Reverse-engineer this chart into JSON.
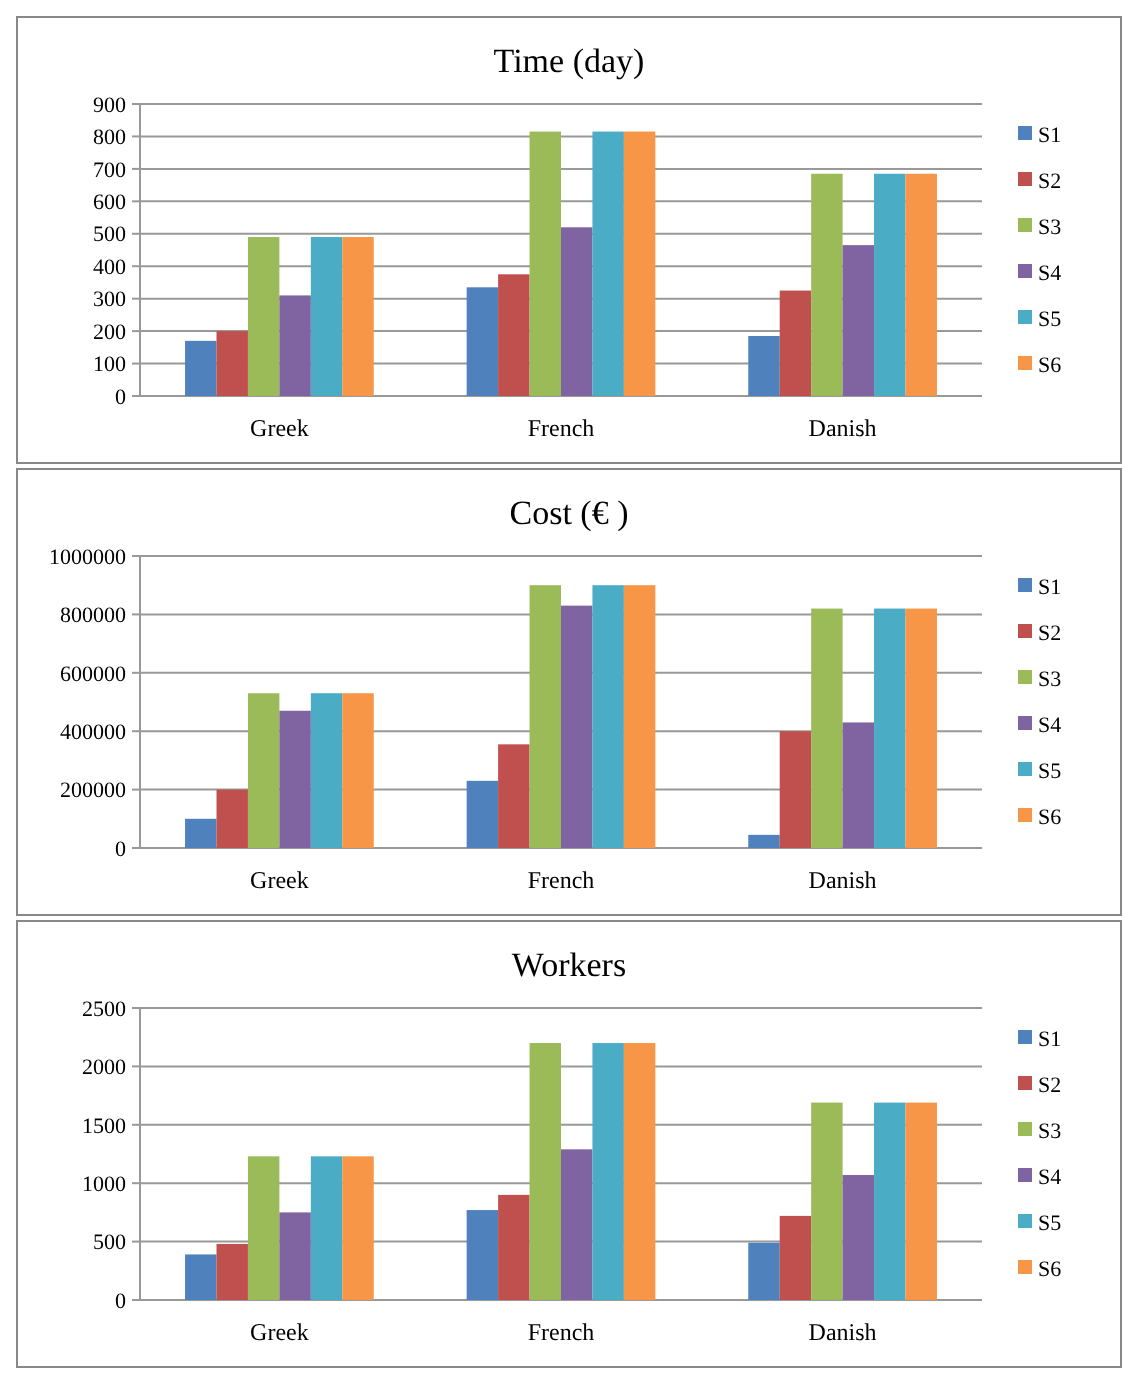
{
  "chart_data": [
    {
      "type": "bar",
      "title": "Time (day)",
      "categories": [
        "Greek",
        "French",
        "Danish"
      ],
      "ylim": [
        0,
        900
      ],
      "yticks": [
        0,
        100,
        200,
        300,
        400,
        500,
        600,
        700,
        800,
        900
      ],
      "grid": "y",
      "legend": "right",
      "series": [
        {
          "name": "S1",
          "color": "#4f81bd",
          "values": [
            170,
            335,
            185
          ]
        },
        {
          "name": "S2",
          "color": "#c0504d",
          "values": [
            200,
            375,
            325
          ]
        },
        {
          "name": "S3",
          "color": "#9bbb59",
          "values": [
            490,
            815,
            685
          ]
        },
        {
          "name": "S4",
          "color": "#8064a2",
          "values": [
            310,
            520,
            465
          ]
        },
        {
          "name": "S5",
          "color": "#4bacc6",
          "values": [
            490,
            815,
            685
          ]
        },
        {
          "name": "S6",
          "color": "#f79646",
          "values": [
            490,
            815,
            685
          ]
        }
      ]
    },
    {
      "type": "bar",
      "title": "Cost (€ )",
      "categories": [
        "Greek",
        "French",
        "Danish"
      ],
      "ylim": [
        0,
        1000000
      ],
      "yticks": [
        0,
        200000,
        400000,
        600000,
        800000,
        1000000
      ],
      "grid": "y",
      "legend": "right",
      "series": [
        {
          "name": "S1",
          "color": "#4f81bd",
          "values": [
            100000,
            230000,
            45000
          ]
        },
        {
          "name": "S2",
          "color": "#c0504d",
          "values": [
            200000,
            355000,
            400000
          ]
        },
        {
          "name": "S3",
          "color": "#9bbb59",
          "values": [
            530000,
            900000,
            820000
          ]
        },
        {
          "name": "S4",
          "color": "#8064a2",
          "values": [
            470000,
            830000,
            430000
          ]
        },
        {
          "name": "S5",
          "color": "#4bacc6",
          "values": [
            530000,
            900000,
            820000
          ]
        },
        {
          "name": "S6",
          "color": "#f79646",
          "values": [
            530000,
            900000,
            820000
          ]
        }
      ]
    },
    {
      "type": "bar",
      "title": "Workers",
      "categories": [
        "Greek",
        "French",
        "Danish"
      ],
      "ylim": [
        0,
        2500
      ],
      "yticks": [
        0,
        500,
        1000,
        1500,
        2000,
        2500
      ],
      "grid": "y",
      "legend": "right",
      "series": [
        {
          "name": "S1",
          "color": "#4f81bd",
          "values": [
            390,
            770,
            490
          ]
        },
        {
          "name": "S2",
          "color": "#c0504d",
          "values": [
            480,
            900,
            720
          ]
        },
        {
          "name": "S3",
          "color": "#9bbb59",
          "values": [
            1230,
            2200,
            1690
          ]
        },
        {
          "name": "S4",
          "color": "#8064a2",
          "values": [
            750,
            1290,
            1070
          ]
        },
        {
          "name": "S5",
          "color": "#4bacc6",
          "values": [
            1230,
            2200,
            1690
          ]
        },
        {
          "name": "S6",
          "color": "#f79646",
          "values": [
            1230,
            2200,
            1690
          ]
        }
      ]
    }
  ]
}
